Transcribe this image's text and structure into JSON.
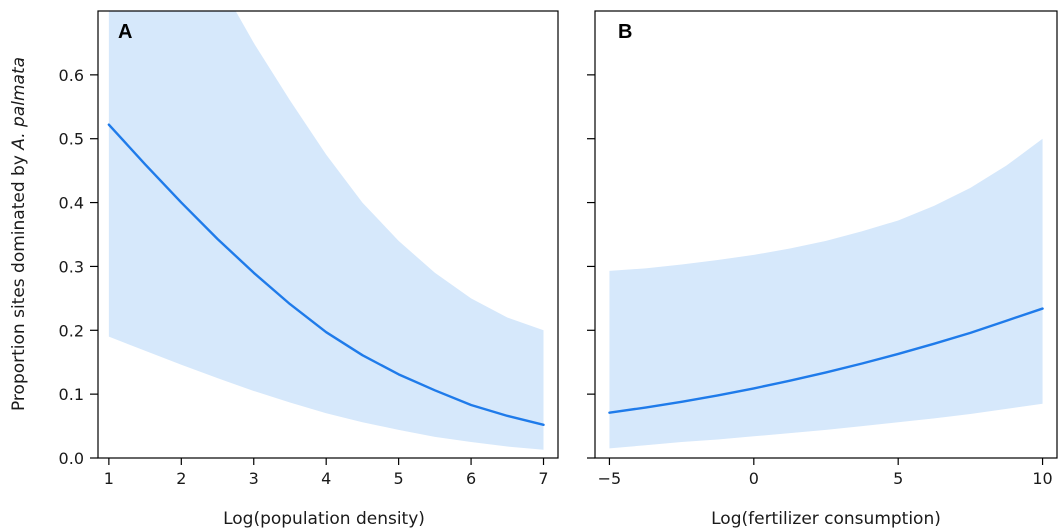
{
  "colors": {
    "ribbon": "#d6e8fb",
    "line": "#1f7bea",
    "axis": "#000000"
  },
  "chart_data": [
    {
      "type": "line",
      "panel_label": "A",
      "xlabel": "Log(population density)",
      "ylabel_prefix": "Proportion sites dominated by ",
      "ylabel_species": "A. palmata",
      "xlim": [
        0.85,
        7.2
      ],
      "ylim": [
        0.0,
        0.7
      ],
      "xticks": [
        1,
        2,
        3,
        4,
        5,
        6,
        7
      ],
      "xtick_labels": [
        "1",
        "2",
        "3",
        "4",
        "5",
        "6",
        "7"
      ],
      "yticks": [
        0.0,
        0.1,
        0.2,
        0.3,
        0.4,
        0.5,
        0.6
      ],
      "ytick_labels": [
        "0.0",
        "0.1",
        "0.2",
        "0.3",
        "0.4",
        "0.5",
        "0.6"
      ],
      "series": [
        {
          "x": [
            1,
            1.5,
            2,
            2.5,
            3,
            3.5,
            4,
            4.5,
            5,
            5.5,
            6,
            6.5,
            7
          ],
          "y": [
            0.522,
            0.46,
            0.4,
            0.343,
            0.29,
            0.241,
            0.197,
            0.161,
            0.131,
            0.106,
            0.083,
            0.066,
            0.052
          ],
          "lower": [
            0.19,
            0.168,
            0.146,
            0.125,
            0.105,
            0.087,
            0.07,
            0.056,
            0.044,
            0.033,
            0.025,
            0.018,
            0.013
          ],
          "upper": [
            0.95,
            0.95,
            0.85,
            0.75,
            0.65,
            0.56,
            0.475,
            0.4,
            0.34,
            0.29,
            0.25,
            0.22,
            0.2
          ]
        }
      ]
    },
    {
      "type": "line",
      "panel_label": "B",
      "xlabel": "Log(fertilizer consumption)",
      "xlim": [
        -5.5,
        10.5
      ],
      "ylim": [
        0.0,
        0.7
      ],
      "xticks": [
        -5,
        0,
        5,
        10
      ],
      "xtick_labels": [
        "−5",
        "0",
        "5",
        "10"
      ],
      "yticks": [
        0.0,
        0.1,
        0.2,
        0.3,
        0.4,
        0.5,
        0.6
      ],
      "series": [
        {
          "x": [
            -5,
            -3.75,
            -2.5,
            -1.25,
            0,
            1.25,
            2.5,
            3.75,
            5,
            6.25,
            7.5,
            8.75,
            10
          ],
          "y": [
            0.071,
            0.079,
            0.088,
            0.098,
            0.109,
            0.121,
            0.134,
            0.148,
            0.163,
            0.179,
            0.196,
            0.215,
            0.234
          ],
          "lower": [
            0.015,
            0.02,
            0.025,
            0.029,
            0.034,
            0.039,
            0.044,
            0.05,
            0.056,
            0.062,
            0.069,
            0.077,
            0.085
          ],
          "upper": [
            0.293,
            0.297,
            0.303,
            0.31,
            0.318,
            0.328,
            0.34,
            0.355,
            0.372,
            0.395,
            0.423,
            0.458,
            0.5
          ]
        }
      ]
    }
  ]
}
